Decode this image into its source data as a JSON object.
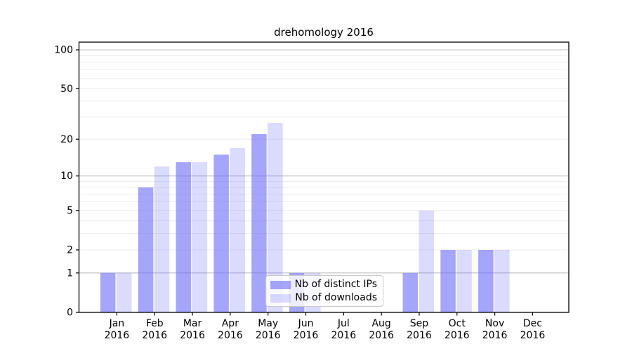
{
  "chart_data": {
    "type": "bar",
    "title": "drehomology 2016",
    "year_label": "2016",
    "categories": [
      "Jan",
      "Feb",
      "Mar",
      "Apr",
      "May",
      "Jun",
      "Jul",
      "Aug",
      "Sep",
      "Oct",
      "Nov",
      "Dec"
    ],
    "series": [
      {
        "name": "Nb of distinct IPs",
        "values": [
          1,
          8,
          13,
          15,
          22,
          1,
          0,
          0,
          1,
          2,
          2,
          0
        ]
      },
      {
        "name": "Nb of downloads",
        "values": [
          1,
          12,
          13,
          17,
          27,
          1,
          0,
          0,
          5,
          2,
          2,
          0
        ]
      }
    ],
    "yticks": [
      0,
      1,
      2,
      5,
      10,
      20,
      50,
      100
    ],
    "scale": "log1p",
    "ylim": [
      0,
      115
    ],
    "grid": "horizontal-only",
    "legend_position": "lower-center-inside"
  },
  "legend": {
    "items": [
      {
        "label": "Nb of distinct IPs"
      },
      {
        "label": "Nb of downloads"
      }
    ]
  },
  "colors": {
    "bar_base": "#6e6efa",
    "bar_ips_alpha": "0.62",
    "bar_downloads_alpha": "0.25",
    "grid_minor": "#ececec",
    "grid_major": "#bdbdbd",
    "axis": "#000000",
    "legend_border": "#c8c8c8",
    "background": "#ffffff",
    "text": "#000000"
  }
}
